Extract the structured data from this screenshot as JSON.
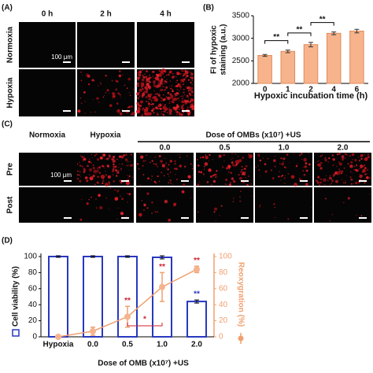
{
  "panel_a": {
    "label": "(A)",
    "columns": [
      "0 h",
      "2 h",
      "4 h"
    ],
    "rows": [
      "Normoxia",
      "Hypoxia"
    ],
    "scale_bar": "100 μm"
  },
  "panel_c": {
    "label": "(C)",
    "columns": [
      "Normoxia",
      "Hypoxia"
    ],
    "dose_header": "Dose of OMBs (x10⁷) +US",
    "doses": [
      "0.0",
      "0.5",
      "1.0",
      "2.0"
    ],
    "rows": [
      "Pre",
      "Post"
    ],
    "scale_bar": "100 μm"
  },
  "chart_data": [
    {
      "type": "bar",
      "label": "(B)",
      "x_label": "Hypoxic incubation time (h)",
      "y_label_lines": [
        "FI of hypoxic",
        "staining (a.u.)"
      ],
      "categories": [
        "0",
        "1",
        "2",
        "4",
        "6"
      ],
      "series": [
        {
          "color": "#f7b48c",
          "values": [
            2620,
            2710,
            2860,
            3110,
            3160
          ],
          "errors": [
            20,
            30,
            50,
            30,
            40
          ]
        }
      ],
      "ylim": [
        2000,
        3500
      ],
      "yticks": [
        2000,
        2500,
        3000,
        3500
      ],
      "brackets": [
        {
          "text": "**",
          "between": [
            "0",
            "1"
          ]
        },
        {
          "text": "**",
          "between": [
            "1",
            "2"
          ]
        },
        {
          "text": "**",
          "between": [
            "2",
            "4"
          ]
        }
      ]
    },
    {
      "type": "bar_line",
      "label": "(D)",
      "x_label": "Dose of OMB (x10⁷) +US",
      "categories": [
        "Hypoxia",
        "0.0",
        "0.5",
        "1.0",
        "2.0"
      ],
      "series": [
        {
          "name": "Cell viability (%)",
          "kind": "bar",
          "color": "#2838c0",
          "values": [
            100,
            100,
            100,
            99,
            44
          ],
          "errors": [
            1,
            1,
            1,
            2,
            2
          ],
          "significance": [
            {
              "category": "2.0",
              "text": "**"
            }
          ]
        },
        {
          "name": "Reoxygration (%)",
          "kind": "line",
          "axis": "y2",
          "color": "#f0a070",
          "values": [
            0,
            7,
            25,
            62,
            84
          ],
          "errors": [
            0,
            5,
            13,
            18,
            4
          ],
          "significance_color": "#d02030",
          "significance": [
            {
              "category": "0.5",
              "text": "**"
            },
            {
              "category": "1.0",
              "text": "**"
            },
            {
              "category": "2.0",
              "text": "**"
            }
          ]
        }
      ],
      "ylim": [
        0,
        100
      ],
      "yticks": [
        0,
        20,
        40,
        60,
        80,
        100
      ],
      "y2lim": [
        0,
        100
      ],
      "y2ticks": [
        0,
        20,
        40,
        60,
        80,
        100
      ],
      "brackets": [
        {
          "text": "*",
          "between": [
            "0.5",
            "1.0"
          ],
          "color": "#d02030"
        }
      ]
    }
  ]
}
